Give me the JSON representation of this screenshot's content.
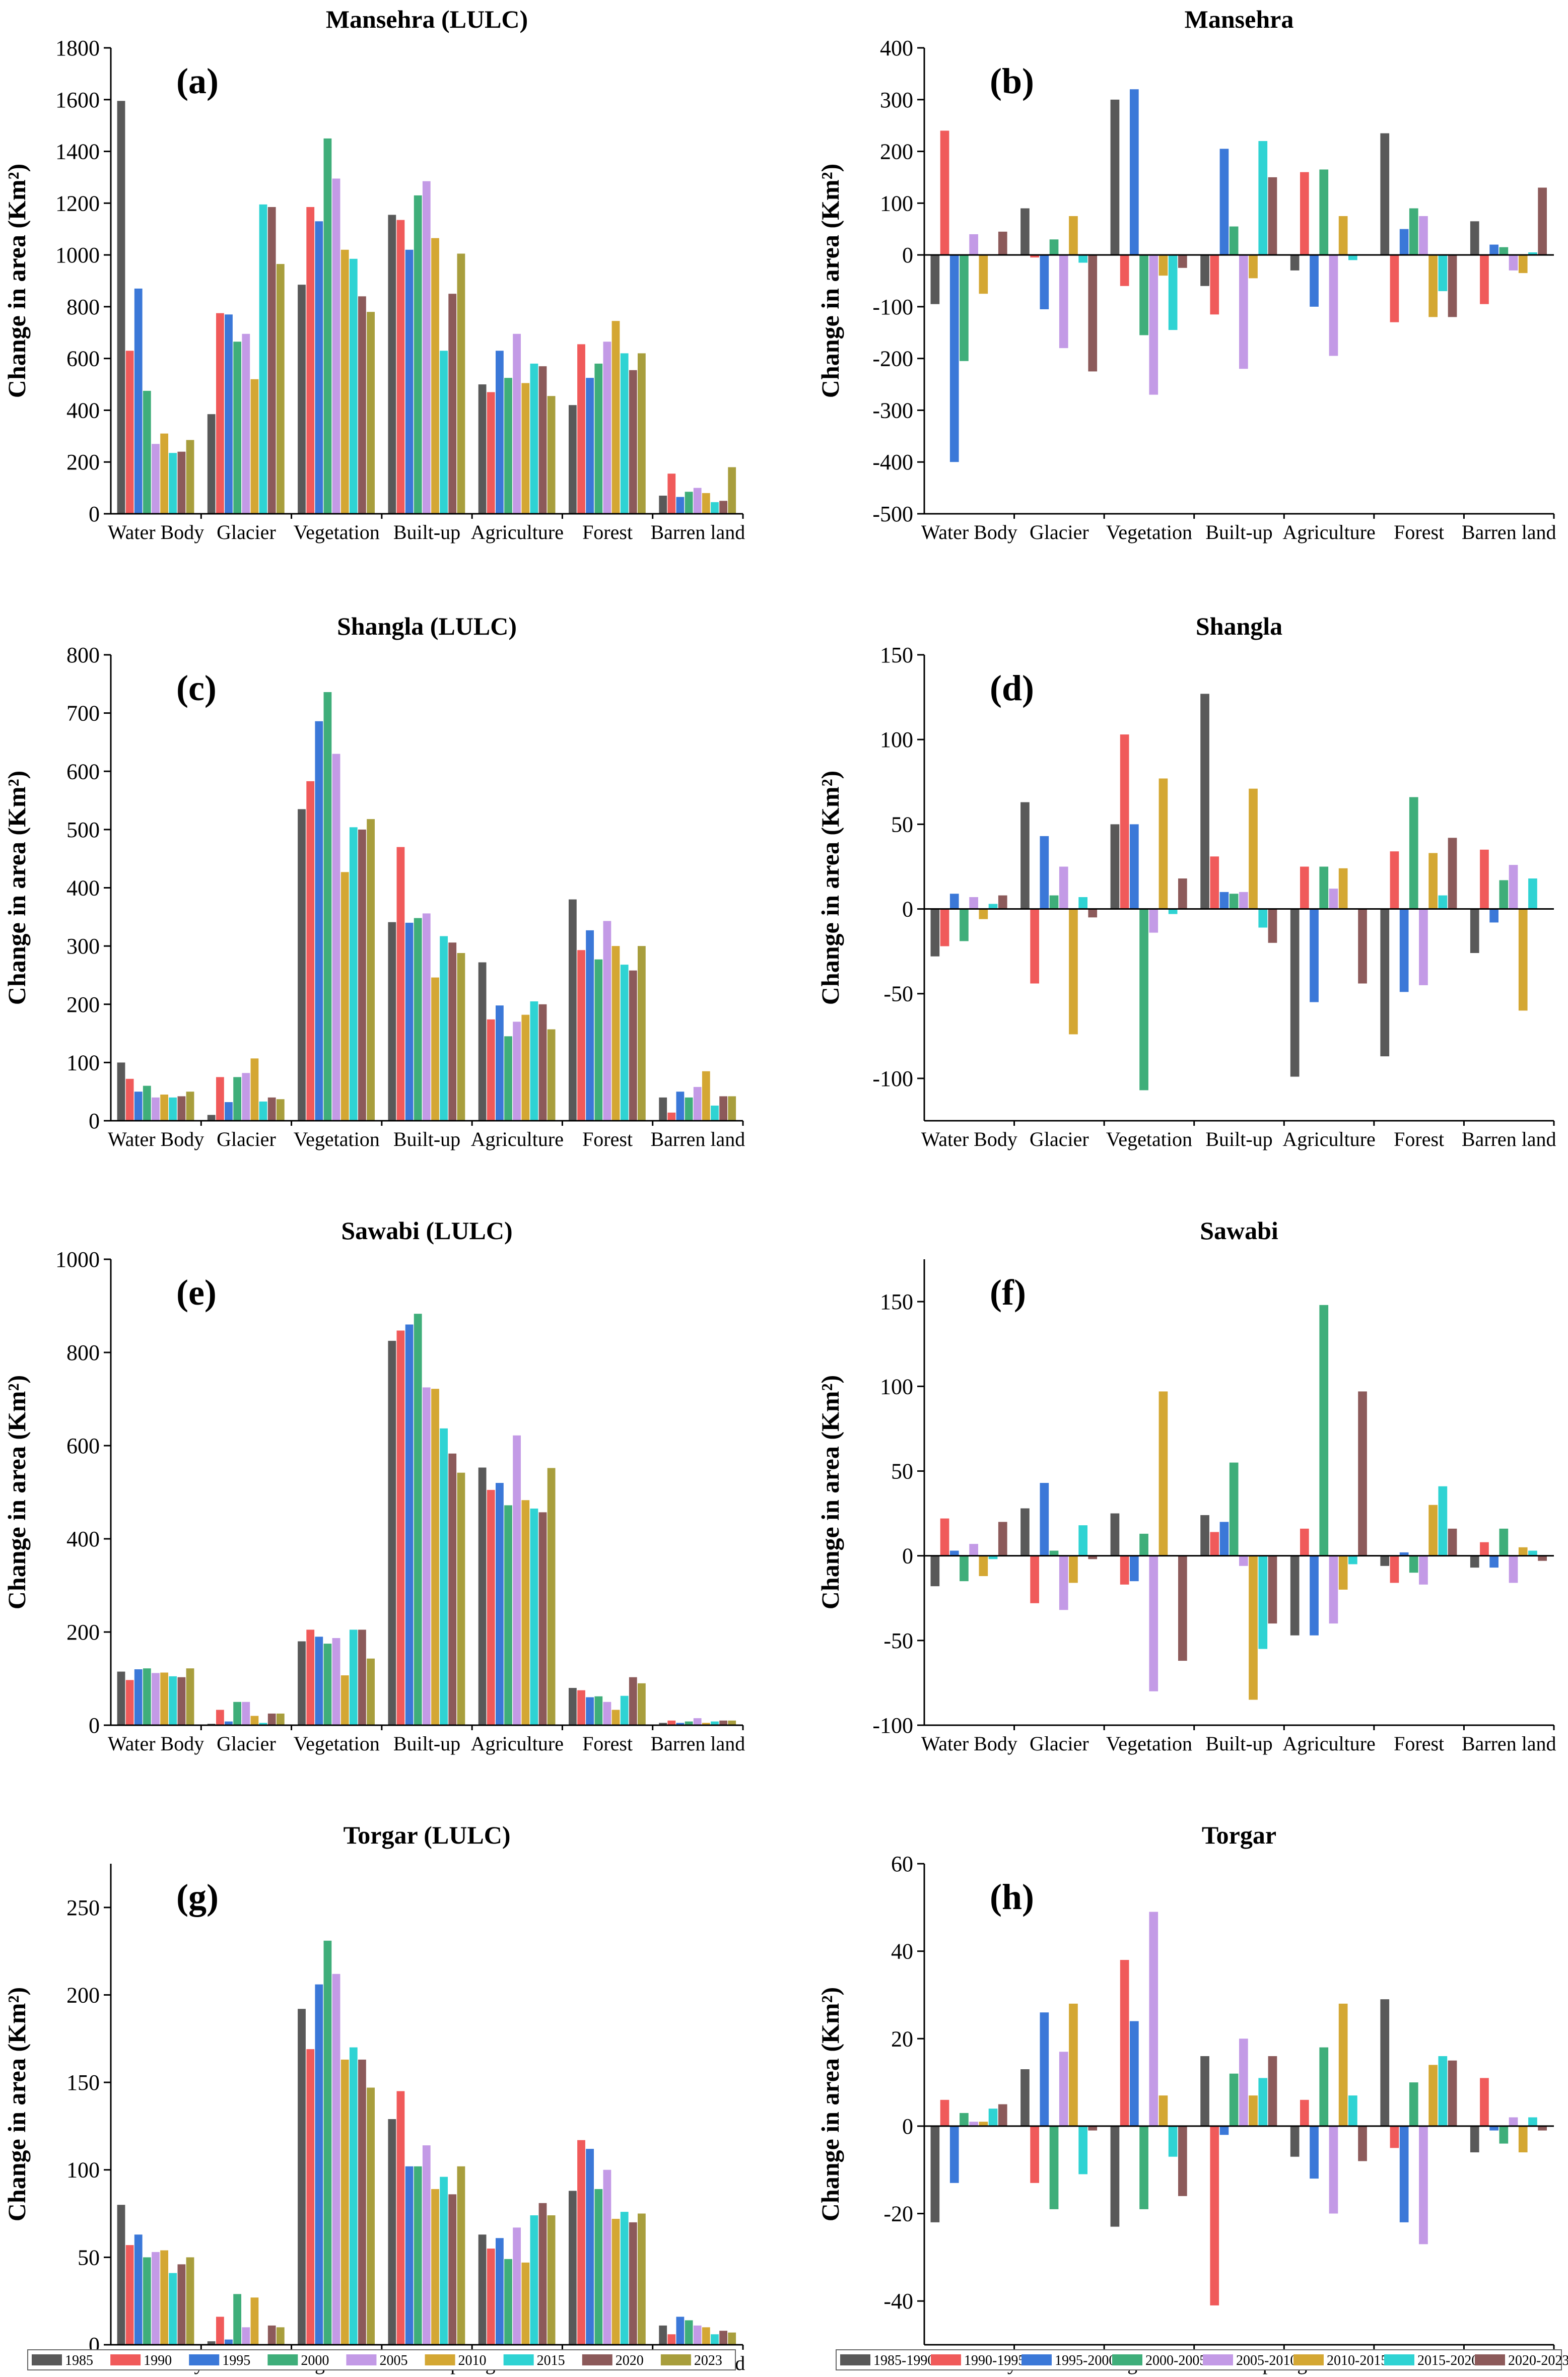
{
  "categories": [
    "Water Body",
    "Glacier",
    "Vegetation",
    "Built-up",
    "Agriculture",
    "Forest",
    "Barren land"
  ],
  "y_axis_label": "Change in area (Km²)",
  "colors": [
    "#595959",
    "#f05a5a",
    "#3b78d8",
    "#3fae7a",
    "#c39ae6",
    "#d4a733",
    "#2fd3d3",
    "#8c5a5a",
    "#a89e3d"
  ],
  "legend_years": [
    "1985",
    "1990",
    "1995",
    "2000",
    "2005",
    "2010",
    "2015",
    "2020",
    "2023"
  ],
  "legend_periods": [
    "1985-1990",
    "1990-1995",
    "1995-2000",
    "2000-2005",
    "2005-2010",
    "2010-2015",
    "2015-2020",
    "2020-2023"
  ],
  "chart_data": [
    {
      "id": "a",
      "type": "bar",
      "title": "Mansehra (LULC)",
      "panel_label": "(a)",
      "ylabel": "Change in area (Km²)",
      "ylim": [
        0,
        1800
      ],
      "yticks": [
        0,
        200,
        400,
        600,
        800,
        1000,
        1200,
        1400,
        1600,
        1800
      ],
      "series_names": [
        "1985",
        "1990",
        "1995",
        "2000",
        "2005",
        "2010",
        "2015",
        "2020",
        "2023"
      ],
      "values": [
        [
          1595,
          630,
          870,
          475,
          270,
          310,
          235,
          240,
          285
        ],
        [
          385,
          775,
          770,
          665,
          695,
          520,
          1195,
          1185,
          965
        ],
        [
          885,
          1185,
          1130,
          1450,
          1295,
          1020,
          985,
          840,
          780
        ],
        [
          1155,
          1135,
          1020,
          1230,
          1285,
          1065,
          630,
          850,
          1005
        ],
        [
          500,
          470,
          630,
          525,
          695,
          505,
          580,
          570,
          455
        ],
        [
          420,
          655,
          525,
          580,
          665,
          745,
          620,
          555,
          620
        ],
        [
          70,
          155,
          65,
          85,
          100,
          80,
          45,
          50,
          180
        ]
      ]
    },
    {
      "id": "b",
      "type": "bar",
      "title": "Mansehra",
      "panel_label": "(b)",
      "ylabel": "Change in area (Km²)",
      "ylim": [
        -500,
        400
      ],
      "yticks": [
        -500,
        -400,
        -300,
        -200,
        -100,
        0,
        100,
        200,
        300,
        400
      ],
      "series_names": [
        "1985-1990",
        "1990-1995",
        "1995-2000",
        "2000-2005",
        "2005-2010",
        "2010-2015",
        "2015-2020",
        "2020-2023"
      ],
      "values": [
        [
          -95,
          240,
          -400,
          -205,
          40,
          -75,
          0,
          45
        ],
        [
          90,
          -5,
          -105,
          30,
          -180,
          75,
          -15,
          -225
        ],
        [
          300,
          -60,
          320,
          -155,
          -270,
          -40,
          -145,
          -25
        ],
        [
          -60,
          -115,
          205,
          55,
          -220,
          -45,
          220,
          150
        ],
        [
          -30,
          160,
          -100,
          165,
          -195,
          75,
          -10,
          0
        ],
        [
          235,
          -130,
          50,
          90,
          75,
          -120,
          -70,
          -120
        ],
        [
          65,
          -95,
          20,
          15,
          -30,
          -35,
          5,
          130
        ]
      ]
    },
    {
      "id": "c",
      "type": "bar",
      "title": "Shangla (LULC)",
      "panel_label": "(c)",
      "ylabel": "Change in area (Km²)",
      "ylim": [
        0,
        800
      ],
      "yticks": [
        0,
        100,
        200,
        300,
        400,
        500,
        600,
        700,
        800
      ],
      "series_names": [
        "1985",
        "1990",
        "1995",
        "2000",
        "2005",
        "2010",
        "2015",
        "2020",
        "2023"
      ],
      "values": [
        [
          100,
          72,
          50,
          60,
          40,
          45,
          40,
          42,
          50
        ],
        [
          10,
          75,
          32,
          75,
          82,
          107,
          33,
          40,
          37
        ],
        [
          535,
          583,
          686,
          736,
          630,
          427,
          504,
          500,
          518
        ],
        [
          341,
          470,
          340,
          348,
          356,
          246,
          317,
          306,
          288
        ],
        [
          272,
          174,
          198,
          145,
          170,
          182,
          205,
          200,
          157
        ],
        [
          380,
          293,
          327,
          277,
          343,
          300,
          268,
          258,
          300
        ],
        [
          40,
          14,
          50,
          40,
          58,
          85,
          26,
          42,
          42
        ]
      ]
    },
    {
      "id": "d",
      "type": "bar",
      "title": "Shangla",
      "panel_label": "(d)",
      "ylabel": "Change in area (Km²)",
      "ylim": [
        -125,
        150
      ],
      "yticks": [
        -100,
        -50,
        0,
        50,
        100,
        150
      ],
      "series_names": [
        "1985-1990",
        "1990-1995",
        "1995-2000",
        "2000-2005",
        "2005-2010",
        "2010-2015",
        "2015-2020",
        "2020-2023"
      ],
      "values": [
        [
          -28,
          -22,
          9,
          -19,
          7,
          -6,
          3,
          8
        ],
        [
          63,
          -44,
          43,
          8,
          25,
          -74,
          7,
          -5
        ],
        [
          50,
          103,
          50,
          -107,
          -14,
          77,
          -3,
          18
        ],
        [
          127,
          31,
          10,
          9,
          10,
          71,
          -11,
          -20
        ],
        [
          -99,
          25,
          -55,
          25,
          12,
          24,
          0,
          -44
        ],
        [
          -87,
          34,
          -49,
          66,
          -45,
          33,
          8,
          42
        ],
        [
          -26,
          35,
          -8,
          17,
          26,
          -60,
          18,
          0
        ]
      ]
    },
    {
      "id": "e",
      "type": "bar",
      "title": "Sawabi (LULC)",
      "panel_label": "(e)",
      "ylabel": "Change in area (Km²)",
      "ylim": [
        0,
        1000
      ],
      "yticks": [
        0,
        200,
        400,
        600,
        800,
        1000
      ],
      "series_names": [
        "1985",
        "1990",
        "1995",
        "2000",
        "2005",
        "2010",
        "2015",
        "2020",
        "2023"
      ],
      "values": [
        [
          115,
          97,
          120,
          122,
          112,
          113,
          105,
          103,
          122
        ],
        [
          3,
          33,
          8,
          50,
          50,
          20,
          5,
          25,
          25
        ],
        [
          180,
          205,
          190,
          175,
          187,
          107,
          205,
          205,
          143
        ],
        [
          825,
          847,
          860,
          883,
          725,
          722,
          637,
          583,
          542
        ],
        [
          553,
          505,
          520,
          472,
          622,
          483,
          465,
          457,
          552
        ],
        [
          80,
          75,
          60,
          62,
          50,
          33,
          63,
          103,
          90
        ],
        [
          5,
          10,
          5,
          8,
          15,
          5,
          8,
          10,
          10
        ]
      ]
    },
    {
      "id": "f",
      "type": "bar",
      "title": "Sawabi",
      "panel_label": "(f)",
      "ylabel": "Change in area (Km²)",
      "ylim": [
        -100,
        175
      ],
      "yticks": [
        -100,
        -50,
        0,
        50,
        100,
        150
      ],
      "series_names": [
        "1985-1990",
        "1990-1995",
        "1995-2000",
        "2000-2005",
        "2005-2010",
        "2010-2015",
        "2015-2020",
        "2020-2023"
      ],
      "values": [
        [
          -18,
          22,
          3,
          -15,
          7,
          -12,
          -2,
          20
        ],
        [
          28,
          -28,
          43,
          3,
          -32,
          -16,
          18,
          -2
        ],
        [
          25,
          -17,
          -15,
          13,
          -80,
          97,
          0,
          -62
        ],
        [
          24,
          14,
          20,
          55,
          -6,
          -85,
          -55,
          -40
        ],
        [
          -47,
          16,
          -47,
          148,
          -40,
          -20,
          -5,
          97
        ],
        [
          -6,
          -16,
          2,
          -10,
          -17,
          30,
          41,
          16
        ],
        [
          -7,
          8,
          -7,
          16,
          -16,
          5,
          3,
          -3
        ]
      ]
    },
    {
      "id": "g",
      "type": "bar",
      "title": "Torgar (LULC)",
      "panel_label": "(g)",
      "ylabel": "Change in area (Km²)",
      "ylim": [
        0,
        275
      ],
      "yticks": [
        0,
        50,
        100,
        150,
        200,
        250
      ],
      "series_names": [
        "1985",
        "1990",
        "1995",
        "2000",
        "2005",
        "2010",
        "2015",
        "2020",
        "2023"
      ],
      "values": [
        [
          80,
          57,
          63,
          50,
          53,
          54,
          41,
          46,
          50
        ],
        [
          2,
          16,
          3,
          29,
          10,
          27,
          0,
          11,
          10
        ],
        [
          192,
          169,
          206,
          231,
          212,
          163,
          170,
          163,
          147
        ],
        [
          129,
          145,
          102,
          102,
          114,
          89,
          96,
          86,
          102
        ],
        [
          63,
          55,
          61,
          49,
          67,
          47,
          74,
          81,
          74
        ],
        [
          88,
          117,
          112,
          89,
          100,
          72,
          76,
          70,
          75
        ],
        [
          11,
          6,
          16,
          14,
          11,
          10,
          6,
          8,
          7
        ]
      ]
    },
    {
      "id": "h",
      "type": "bar",
      "title": "Torgar",
      "panel_label": "(h)",
      "ylabel": "Change in area (Km²)",
      "ylim": [
        -50,
        60
      ],
      "yticks": [
        -40,
        -20,
        0,
        20,
        40,
        60
      ],
      "series_names": [
        "1985-1990",
        "1990-1995",
        "1995-2000",
        "2000-2005",
        "2005-2010",
        "2010-2015",
        "2015-2020",
        "2020-2023"
      ],
      "values": [
        [
          -22,
          6,
          -13,
          3,
          1,
          1,
          4,
          5
        ],
        [
          13,
          -13,
          26,
          -19,
          17,
          28,
          -11,
          -1
        ],
        [
          -23,
          38,
          24,
          -19,
          49,
          7,
          -7,
          -16
        ],
        [
          16,
          -41,
          -2,
          12,
          20,
          7,
          11,
          16
        ],
        [
          -7,
          6,
          -12,
          18,
          -20,
          28,
          7,
          -8
        ],
        [
          29,
          -5,
          -22,
          10,
          -27,
          14,
          16,
          15
        ],
        [
          -6,
          11,
          -1,
          -4,
          2,
          -6,
          2,
          -1
        ]
      ]
    }
  ]
}
